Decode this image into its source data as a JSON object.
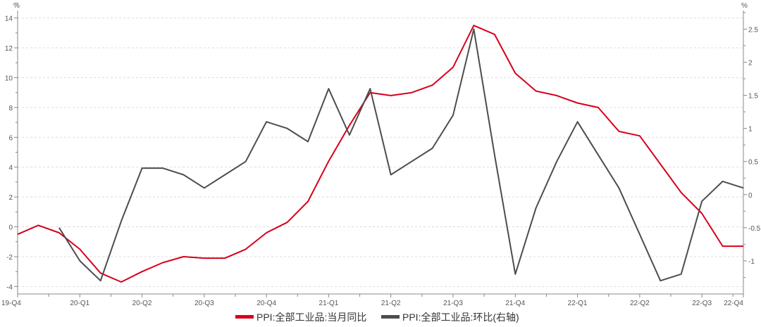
{
  "chart_data": {
    "type": "line",
    "left_unit": "%",
    "right_unit": "%",
    "x": [
      "2019-12",
      "2020-01",
      "2020-02",
      "2020-03",
      "2020-04",
      "2020-05",
      "2020-06",
      "2020-07",
      "2020-08",
      "2020-09",
      "2020-10",
      "2020-11",
      "2020-12",
      "2021-01",
      "2021-02",
      "2021-03",
      "2021-04",
      "2021-05",
      "2021-06",
      "2021-07",
      "2021-08",
      "2021-09",
      "2021-10",
      "2021-11",
      "2021-12",
      "2022-01",
      "2022-02",
      "2022-03",
      "2022-04",
      "2022-05",
      "2022-06",
      "2022-07",
      "2022-08",
      "2022-09",
      "2022-10",
      "2022-11"
    ],
    "x_tick_labels": [
      "19-Q4",
      "20-Q1",
      "20-Q2",
      "20-Q3",
      "20-Q4",
      "21-Q1",
      "21-Q2",
      "21-Q3",
      "21-Q4",
      "22-Q1",
      "22-Q2",
      "22-Q3",
      "22-Q4"
    ],
    "x_tick_index": [
      0,
      3,
      6,
      9,
      12,
      15,
      18,
      21,
      24,
      27,
      30,
      33,
      35
    ],
    "left_axis": {
      "ylim": [
        -4.5,
        14.5
      ],
      "ticks": [
        -4,
        -2,
        0,
        2,
        4,
        6,
        8,
        10,
        12,
        14
      ]
    },
    "right_axis": {
      "ylim": [
        -1.5,
        2.78
      ],
      "ticks": [
        -1,
        -0.5,
        0,
        0.5,
        1,
        1.5,
        2,
        2.5
      ]
    },
    "grid": true,
    "legend_placement": "bottom",
    "series": [
      {
        "name": "PPI:全部工业品:当月同比",
        "axis": "left",
        "color": "#d7001a",
        "values": [
          -0.5,
          0.1,
          -0.4,
          -1.5,
          -3.1,
          -3.7,
          -3.0,
          -2.4,
          -2.0,
          -2.1,
          -2.1,
          -1.5,
          -0.4,
          0.3,
          1.7,
          4.4,
          6.8,
          9.0,
          8.8,
          9.0,
          9.5,
          10.7,
          13.5,
          12.9,
          10.3,
          9.1,
          8.8,
          8.3,
          8.0,
          6.4,
          6.1,
          4.2,
          2.3,
          0.9,
          -1.3,
          -1.3
        ]
      },
      {
        "name": "PPI:全部工业品:环比(右轴)",
        "axis": "right",
        "color": "#4d4d4d",
        "values": [
          null,
          null,
          -0.5,
          -1.0,
          -1.3,
          -0.4,
          0.4,
          0.4,
          0.3,
          0.1,
          0.3,
          0.5,
          1.1,
          1.0,
          0.8,
          1.6,
          0.9,
          1.6,
          0.3,
          0.5,
          0.7,
          1.2,
          2.5,
          0.6,
          -1.2,
          -0.2,
          0.5,
          1.1,
          0.6,
          0.1,
          -0.6,
          -1.3,
          -1.2,
          -0.1,
          0.2,
          0.1
        ]
      }
    ]
  }
}
